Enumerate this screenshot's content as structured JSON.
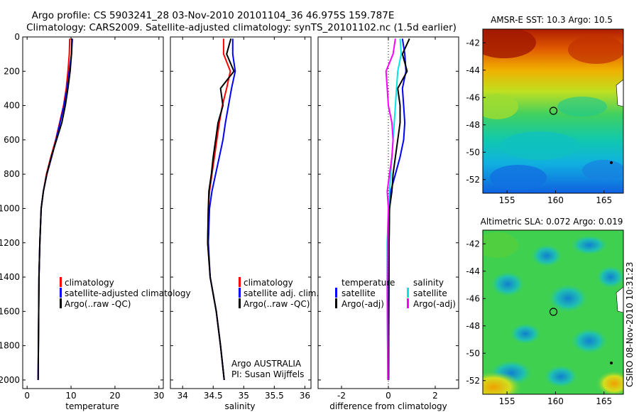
{
  "title_line1": "Argo profile: CS 5903241_28 03-Nov-2010 20101104_36 46.975S 159.787E",
  "title_line2": "Climatology: CARS2009. Satellite-adjusted climatology: synTS_20101102.nc (1.5d earlier)",
  "side_label": "CSIRO 08-Nov-2010 10:31:23",
  "colors": {
    "climatology": "#ff0000",
    "satellite": "#0000ff",
    "argo": "#000000",
    "cyan": "#00e5e5",
    "magenta": "#ff00ff"
  },
  "chart_data": [
    {
      "id": "temperature",
      "type": "line",
      "xlabel": "temperature",
      "xlim": [
        -1,
        31
      ],
      "ylim": [
        2050,
        0
      ],
      "xticks": [
        0,
        10,
        20,
        30
      ],
      "yticks": [
        0,
        200,
        400,
        600,
        800,
        1000,
        1200,
        1400,
        1600,
        1800,
        2000
      ],
      "legend": [
        "climatology",
        "satellite-adjusted climatology",
        "Argo(..raw -QC)"
      ],
      "series": [
        {
          "name": "climatology",
          "color": "#ff0000",
          "x": [
            9.7,
            9.6,
            9.3,
            8.9,
            8.3,
            7.4,
            6.5,
            5.4,
            4.4,
            3.7,
            3.2,
            2.9,
            2.7,
            2.6,
            2.5
          ],
          "y": [
            10,
            100,
            200,
            300,
            400,
            500,
            600,
            700,
            800,
            900,
            1000,
            1200,
            1400,
            1700,
            2000
          ]
        },
        {
          "name": "satellite-adjusted climatology",
          "color": "#0000ff",
          "x": [
            10.3,
            10.1,
            9.6,
            9.1,
            8.4,
            7.5,
            6.6,
            5.6,
            4.5,
            3.7,
            3.2,
            2.9,
            2.7,
            2.6,
            2.5
          ],
          "y": [
            10,
            100,
            200,
            300,
            400,
            500,
            600,
            700,
            800,
            900,
            1000,
            1200,
            1400,
            1700,
            2000
          ]
        },
        {
          "name": "Argo(..raw -QC)",
          "color": "#000000",
          "x": [
            10.2,
            10.1,
            9.8,
            9.3,
            8.7,
            7.9,
            6.7,
            5.5,
            4.5,
            3.7,
            3.2,
            2.9,
            2.7,
            2.6,
            2.5
          ],
          "y": [
            10,
            100,
            200,
            300,
            400,
            500,
            600,
            700,
            800,
            900,
            1000,
            1200,
            1400,
            1700,
            2000
          ]
        }
      ]
    },
    {
      "id": "salinity",
      "type": "line",
      "xlabel": "salinity",
      "xlim": [
        33.8,
        36.1
      ],
      "ylim": [
        2050,
        0
      ],
      "xticks": [
        34,
        34.5,
        35,
        35.5,
        36
      ],
      "xticklabels": [
        "34",
        "34.5",
        "35",
        "35.5",
        "36"
      ],
      "yticks": [
        0,
        200,
        400,
        600,
        800,
        1000,
        1200,
        1400,
        1600,
        1800,
        2000
      ],
      "legend": [
        "climatology",
        "satellite adj. clim.",
        "Argo(..raw -QC)"
      ],
      "note_line1": "Argo AUSTRALIA",
      "note_line2": "PI: Susan Wijffels",
      "series": [
        {
          "name": "climatology",
          "color": "#ff0000",
          "x": [
            34.67,
            34.67,
            34.78,
            34.72,
            34.65,
            34.6,
            34.56,
            34.52,
            34.48,
            34.44,
            34.42,
            34.41,
            34.45,
            34.55,
            34.62,
            34.68
          ],
          "y": [
            10,
            100,
            200,
            300,
            400,
            500,
            600,
            700,
            800,
            900,
            1000,
            1200,
            1400,
            1600,
            1800,
            2000
          ]
        },
        {
          "name": "satellite adj. clim.",
          "color": "#0000ff",
          "x": [
            34.82,
            34.82,
            34.86,
            34.8,
            34.75,
            34.7,
            34.66,
            34.6,
            34.54,
            34.48,
            34.44,
            34.42,
            34.45,
            34.55,
            34.62,
            34.68
          ],
          "y": [
            10,
            100,
            200,
            300,
            400,
            500,
            600,
            700,
            800,
            900,
            1000,
            1200,
            1400,
            1600,
            1800,
            2000
          ]
        },
        {
          "name": "Argo(..raw -QC)",
          "color": "#000000",
          "x": [
            34.79,
            34.72,
            34.84,
            34.62,
            34.66,
            34.58,
            34.54,
            34.5,
            34.47,
            34.43,
            34.42,
            34.41,
            34.45,
            34.55,
            34.62,
            34.68
          ],
          "y": [
            10,
            100,
            200,
            300,
            400,
            500,
            600,
            700,
            800,
            900,
            1000,
            1200,
            1400,
            1600,
            1800,
            2000
          ]
        }
      ]
    },
    {
      "id": "difference",
      "type": "line",
      "xlabel": "difference from climatology",
      "xlim": [
        -3,
        3
      ],
      "ylim": [
        2050,
        0
      ],
      "xticks": [
        -2,
        0,
        2
      ],
      "yticks": [
        0,
        200,
        400,
        600,
        800,
        1000,
        1200,
        1400,
        1600,
        1800,
        2000
      ],
      "legend_temperature_header": "temperature",
      "legend_salinity_header": "salinity",
      "legend": [
        "satellite",
        "Argo(-adj)",
        "satellite",
        "Argo(-adj)"
      ],
      "series": [
        {
          "name": "temperature satellite",
          "color": "#0000ff",
          "x": [
            0.6,
            0.7,
            0.75,
            0.6,
            0.65,
            0.7,
            0.65,
            0.5,
            0.3,
            0.1,
            0.05,
            0.03,
            0.02,
            0.01
          ],
          "y": [
            10,
            100,
            200,
            300,
            400,
            500,
            600,
            700,
            800,
            900,
            1000,
            1200,
            1500,
            2000
          ]
        },
        {
          "name": "temperature Argo(-adj)",
          "color": "#000000",
          "x": [
            0.9,
            0.6,
            0.8,
            0.4,
            0.5,
            0.5,
            0.4,
            0.3,
            0.2,
            0.15,
            0.05,
            0.03,
            0.02,
            0.01
          ],
          "y": [
            10,
            100,
            200,
            300,
            400,
            500,
            600,
            700,
            800,
            900,
            1000,
            1200,
            1500,
            2000
          ]
        },
        {
          "name": "salinity satellite",
          "color": "#00e5e5",
          "x": [
            0.5,
            0.55,
            0.4,
            0.35,
            0.3,
            0.25,
            0.2,
            0.15,
            0.1,
            0.05,
            0.0,
            -0.05,
            -0.05,
            -0.02
          ],
          "y": [
            10,
            100,
            200,
            300,
            400,
            500,
            600,
            700,
            800,
            900,
            1000,
            1200,
            1500,
            2000
          ]
        },
        {
          "name": "salinity Argo(-adj)",
          "color": "#ff00ff",
          "x": [
            0.3,
            0.2,
            -0.1,
            -0.05,
            0.0,
            0.15,
            0.2,
            0.15,
            0.05,
            -0.05,
            0.0,
            -0.03,
            -0.05,
            -0.02
          ],
          "y": [
            10,
            100,
            200,
            300,
            400,
            500,
            600,
            700,
            800,
            900,
            1000,
            1200,
            1500,
            2000
          ]
        }
      ]
    },
    {
      "id": "sst_map",
      "type": "heatmap",
      "title": "AMSR-E SST: 10.3  Argo: 10.5",
      "xlim": [
        152.5,
        167
      ],
      "ylim": [
        -53,
        -41
      ],
      "xticks": [
        155,
        160,
        165
      ],
      "yticks": [
        -42,
        -44,
        -46,
        -48,
        -50,
        -52
      ],
      "marker": {
        "lon": 159.787,
        "lat": -46.975
      }
    },
    {
      "id": "sla_map",
      "type": "heatmap",
      "title": "Altimetric SLA: 0.072  Argo: 0.019",
      "xlim": [
        152.5,
        167
      ],
      "ylim": [
        -53,
        -41
      ],
      "xticks": [
        155,
        160,
        165
      ],
      "yticks": [
        -42,
        -44,
        -46,
        -48,
        -50,
        -52
      ],
      "marker": {
        "lon": 159.787,
        "lat": -46.975
      }
    }
  ]
}
